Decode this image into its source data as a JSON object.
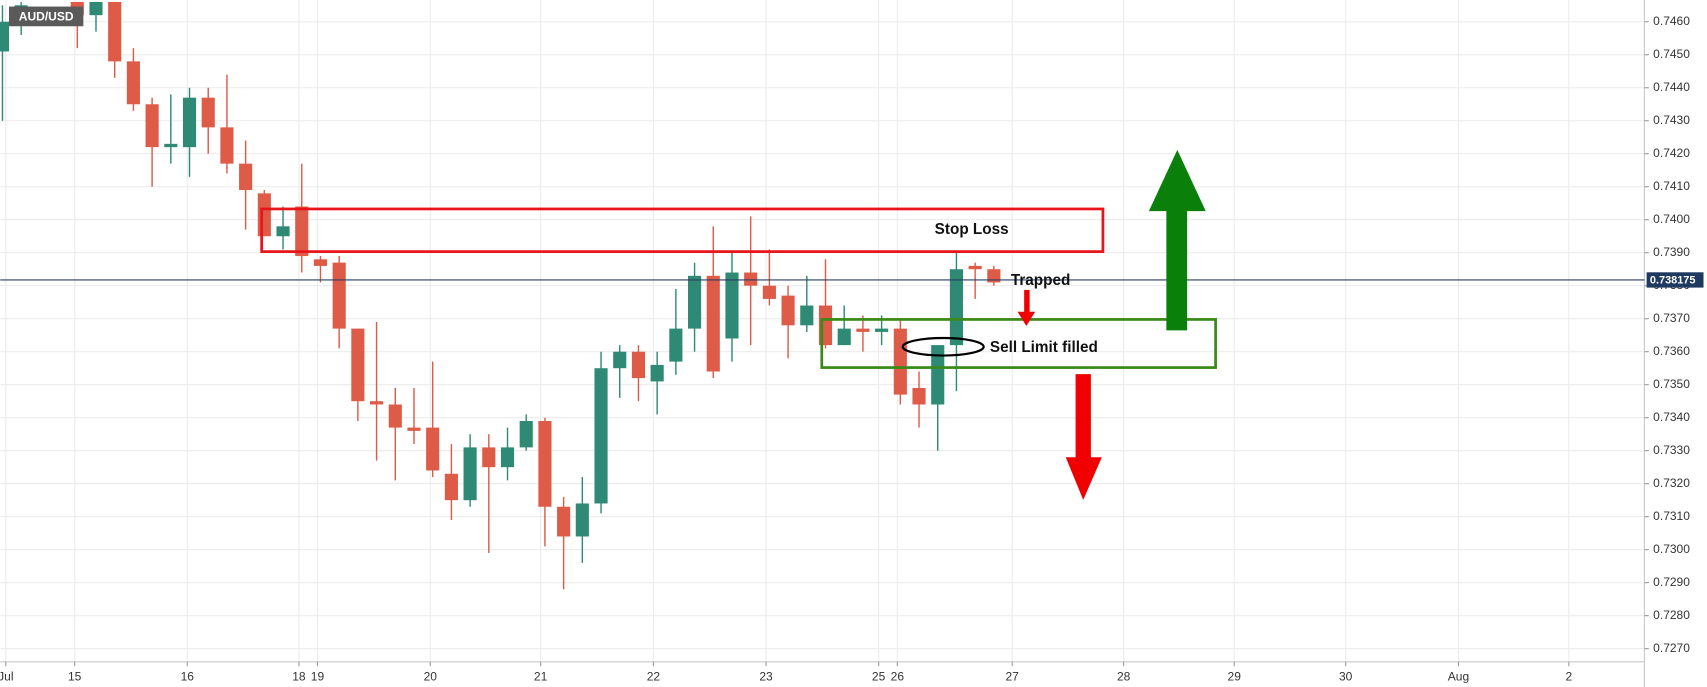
{
  "chart_data": {
    "type": "candlestick",
    "title": "AUD/USD",
    "x": [
      0,
      1,
      4,
      5,
      6,
      7,
      8,
      9,
      10,
      11,
      12,
      13,
      14,
      15,
      16,
      17,
      18,
      19,
      20,
      21,
      22,
      23,
      24,
      25,
      26,
      27,
      28,
      29,
      30,
      31,
      32,
      33,
      34,
      35,
      36,
      37,
      38,
      39,
      40,
      41,
      42,
      43,
      44,
      45,
      46,
      47,
      48,
      49,
      50,
      51,
      52,
      53
    ],
    "open": [
      0.7451,
      0.7461,
      0.7466,
      0.7462,
      0.7466,
      0.7448,
      0.7435,
      0.7422,
      0.7422,
      0.7437,
      0.7428,
      0.7417,
      0.7408,
      0.7395,
      0.7404,
      0.7388,
      0.7387,
      0.7367,
      0.7345,
      0.7344,
      0.7337,
      0.7337,
      0.7323,
      0.7315,
      0.7331,
      0.7325,
      0.7331,
      0.7339,
      0.7313,
      0.7304,
      0.7314,
      0.7355,
      0.736,
      0.7351,
      0.7357,
      0.7367,
      0.7383,
      0.7364,
      0.7384,
      0.738,
      0.7377,
      0.7368,
      0.7374,
      0.7362,
      0.7367,
      0.7366,
      0.7367,
      0.7349,
      0.7344,
      0.7362,
      0.7386,
      0.7385
    ],
    "high": [
      0.7465,
      0.7466,
      0.7466,
      0.7466,
      0.7466,
      0.7452,
      0.7437,
      0.7438,
      0.744,
      0.744,
      0.7444,
      0.7424,
      0.7409,
      0.7404,
      0.7417,
      0.7389,
      0.7389,
      0.7367,
      0.7369,
      0.7349,
      0.7349,
      0.7357,
      0.7332,
      0.7335,
      0.7335,
      0.7337,
      0.7341,
      0.734,
      0.7316,
      0.7322,
      0.736,
      0.7362,
      0.7362,
      0.736,
      0.7379,
      0.7387,
      0.7398,
      0.739,
      0.7401,
      0.7391,
      0.738,
      0.7383,
      0.7388,
      0.7374,
      0.7371,
      0.7371,
      0.737,
      0.7354,
      0.7362,
      0.739,
      0.7387,
      0.7386
    ],
    "low": [
      0.743,
      0.7456,
      0.7452,
      0.7457,
      0.7443,
      0.7433,
      0.741,
      0.7417,
      0.7413,
      0.742,
      0.7414,
      0.7397,
      0.7395,
      0.7391,
      0.7384,
      0.7381,
      0.7361,
      0.7339,
      0.7327,
      0.7321,
      0.7332,
      0.7322,
      0.7309,
      0.7313,
      0.7299,
      0.7321,
      0.733,
      0.7301,
      0.7288,
      0.7296,
      0.7311,
      0.7346,
      0.7345,
      0.7341,
      0.7353,
      0.736,
      0.7352,
      0.7357,
      0.7362,
      0.7374,
      0.7358,
      0.7366,
      0.7361,
      0.7362,
      0.736,
      0.7362,
      0.7344,
      0.7337,
      0.733,
      0.7348,
      0.7376,
      0.738
    ],
    "close": [
      0.746,
      0.7465,
      0.7462,
      0.7466,
      0.7448,
      0.7435,
      0.7422,
      0.7423,
      0.7437,
      0.7428,
      0.7417,
      0.7409,
      0.7395,
      0.7398,
      0.7389,
      0.7386,
      0.7367,
      0.7345,
      0.7344,
      0.7337,
      0.7336,
      0.7324,
      0.7315,
      0.7331,
      0.7325,
      0.7331,
      0.7339,
      0.7313,
      0.7304,
      0.7314,
      0.7355,
      0.736,
      0.7352,
      0.7356,
      0.7367,
      0.7383,
      0.7354,
      0.7384,
      0.738,
      0.7376,
      0.7368,
      0.7374,
      0.7362,
      0.7367,
      0.7366,
      0.7367,
      0.7347,
      0.7344,
      0.7362,
      0.7385,
      0.7385,
      0.7381
    ],
    "up_color": "#2f8a75",
    "down_color": "#de5b48",
    "xlim": [
      -0.12,
      87.78
    ],
    "xticks": [
      {
        "value": 0.18,
        "label": "Jul"
      },
      {
        "value": 3.86,
        "label": "15"
      },
      {
        "value": 9.88,
        "label": "16"
      },
      {
        "value": 15.85,
        "label": "18"
      },
      {
        "value": 16.84,
        "label": "19"
      },
      {
        "value": 22.87,
        "label": "20"
      },
      {
        "value": 28.77,
        "label": "21"
      },
      {
        "value": 34.8,
        "label": "22"
      },
      {
        "value": 40.82,
        "label": "23"
      },
      {
        "value": 46.84,
        "label": "25"
      },
      {
        "value": 47.84,
        "label": "26"
      },
      {
        "value": 53.98,
        "label": "27"
      },
      {
        "value": 59.94,
        "label": "28"
      },
      {
        "value": 65.85,
        "label": "29"
      },
      {
        "value": 71.81,
        "label": "30"
      },
      {
        "value": 77.84,
        "label": "Aug"
      },
      {
        "value": 83.74,
        "label": "2"
      }
    ],
    "ylim": [
      0.7266,
      0.74666
    ],
    "yticks": [
      {
        "value": 0.727,
        "label": "0.7270"
      },
      {
        "value": 0.728,
        "label": "0.7280"
      },
      {
        "value": 0.729,
        "label": "0.7290"
      },
      {
        "value": 0.73,
        "label": "0.7300"
      },
      {
        "value": 0.731,
        "label": "0.7310"
      },
      {
        "value": 0.732,
        "label": "0.7320"
      },
      {
        "value": 0.733,
        "label": "0.7330"
      },
      {
        "value": 0.734,
        "label": "0.7340"
      },
      {
        "value": 0.735,
        "label": "0.7350"
      },
      {
        "value": 0.736,
        "label": "0.7360"
      },
      {
        "value": 0.737,
        "label": "0.7370"
      },
      {
        "value": 0.738,
        "label": "0.7380"
      },
      {
        "value": 0.739,
        "label": "0.7390"
      },
      {
        "value": 0.74,
        "label": "0.7400"
      },
      {
        "value": 0.741,
        "label": "0.7410"
      },
      {
        "value": 0.742,
        "label": "0.7420"
      },
      {
        "value": 0.743,
        "label": "0.7430"
      },
      {
        "value": 0.744,
        "label": "0.7440"
      },
      {
        "value": 0.745,
        "label": "0.7450"
      },
      {
        "value": 0.746,
        "label": "0.7460"
      }
    ],
    "grid": true,
    "last_price": 0.738175,
    "annotations": [
      "Stop Loss",
      "Trapped",
      "Sell Limit filled"
    ]
  }
}
